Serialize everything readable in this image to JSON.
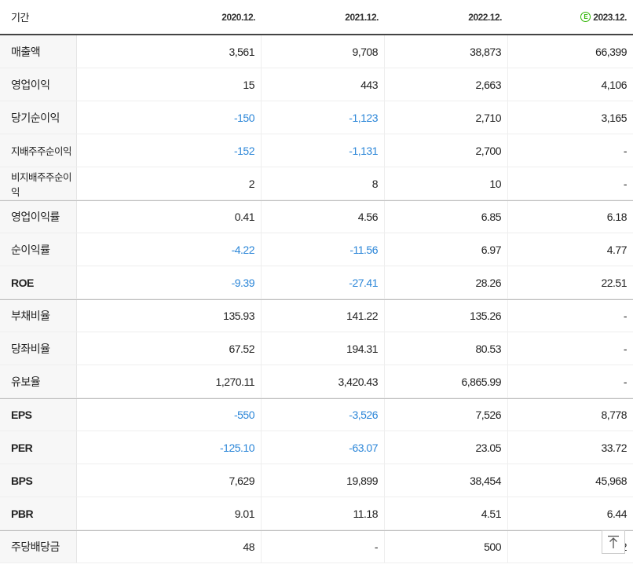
{
  "table": {
    "period_label": "기간",
    "estimate_icon": "estimate-circle-icon",
    "columns": [
      "2020.12.",
      "2021.12.",
      "2022.12.",
      "2023.12."
    ],
    "rows": [
      {
        "label": "매출액",
        "values": [
          "3,561",
          "9,708",
          "38,873",
          "66,399"
        ]
      },
      {
        "label": "영업이익",
        "values": [
          "15",
          "443",
          "2,663",
          "4,106"
        ]
      },
      {
        "label": "당기순이익",
        "values": [
          "-150",
          "-1,123",
          "2,710",
          "3,165"
        ]
      },
      {
        "label": "지배주주순이익",
        "values": [
          "-152",
          "-1,131",
          "2,700",
          "-"
        ]
      },
      {
        "label": "비지배주주순이익",
        "values": [
          "2",
          "8",
          "10",
          "-"
        ]
      },
      {
        "label": "영업이익률",
        "values": [
          "0.41",
          "4.56",
          "6.85",
          "6.18"
        ]
      },
      {
        "label": "순이익률",
        "values": [
          "-4.22",
          "-11.56",
          "6.97",
          "4.77"
        ]
      },
      {
        "label": "ROE",
        "values": [
          "-9.39",
          "-27.41",
          "28.26",
          "22.51"
        ]
      },
      {
        "label": "부채비율",
        "values": [
          "135.93",
          "141.22",
          "135.26",
          "-"
        ]
      },
      {
        "label": "당좌비율",
        "values": [
          "67.52",
          "194.31",
          "80.53",
          "-"
        ]
      },
      {
        "label": "유보율",
        "values": [
          "1,270.11",
          "3,420.43",
          "6,865.99",
          "-"
        ]
      },
      {
        "label": "EPS",
        "values": [
          "-550",
          "-3,526",
          "7,526",
          "8,778"
        ]
      },
      {
        "label": "PER",
        "values": [
          "-125.10",
          "-63.07",
          "23.05",
          "33.72"
        ]
      },
      {
        "label": "BPS",
        "values": [
          "7,629",
          "19,899",
          "38,454",
          "45,968"
        ]
      },
      {
        "label": "PBR",
        "values": [
          "9.01",
          "11.18",
          "4.51",
          "6.44"
        ]
      },
      {
        "label": "주당배당금",
        "values": [
          "48",
          "-",
          "500",
          "2"
        ]
      }
    ]
  },
  "colors": {
    "negative": "#2b86d8",
    "estimate_badge": "#2db400"
  },
  "scroll_top_button": {
    "icon": "arrow-up-icon"
  }
}
